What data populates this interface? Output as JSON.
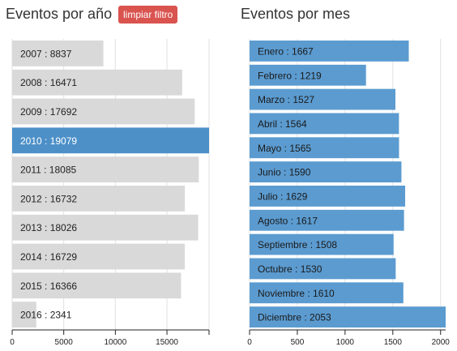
{
  "year_panel": {
    "title": "Eventos por año",
    "reset_label": "limpiar filtro"
  },
  "month_panel": {
    "title": "Eventos por mes"
  },
  "chart_data": [
    {
      "type": "bar",
      "orientation": "horizontal",
      "title": "Eventos por año",
      "categories": [
        "2007",
        "2008",
        "2009",
        "2010",
        "2011",
        "2012",
        "2013",
        "2014",
        "2015",
        "2016"
      ],
      "values": [
        8837,
        16471,
        17692,
        19079,
        18085,
        16732,
        18026,
        16729,
        16366,
        2341
      ],
      "row_labels": [
        "2007 : 8837",
        "2008 : 16471",
        "2009 : 17692",
        "2010 : 19079",
        "2011 : 18085",
        "2012 : 16732",
        "2013 : 18026",
        "2014 : 16729",
        "2015 : 16366",
        "2016 : 2341"
      ],
      "selected": "2010",
      "xlim": [
        0,
        19079
      ],
      "xticks": [
        0,
        5000,
        10000,
        15000
      ],
      "xtick_labels": [
        "0",
        "5000",
        "10000",
        "15000"
      ],
      "grid": true,
      "colors": {
        "default": "#d9d9d9",
        "selected": "#4d90c8",
        "grid": "#e0e0e0"
      }
    },
    {
      "type": "bar",
      "orientation": "horizontal",
      "title": "Eventos por mes",
      "categories": [
        "Enero",
        "Febrero",
        "Marzo",
        "Abril",
        "Mayo",
        "Junio",
        "Julio",
        "Agosto",
        "Septiembre",
        "Octubre",
        "Noviembre",
        "Diciembre"
      ],
      "values": [
        1667,
        1219,
        1527,
        1564,
        1565,
        1590,
        1629,
        1617,
        1508,
        1530,
        1610,
        2053
      ],
      "row_labels": [
        "Enero : 1667",
        "Febrero : 1219",
        "Marzo : 1527",
        "Abril : 1564",
        "Mayo : 1565",
        "Junio : 1590",
        "Julio : 1629",
        "Agosto : 1617",
        "Septiembre : 1508",
        "Octubre : 1530",
        "Noviembre : 1610",
        "Diciembre : 2053"
      ],
      "xlim": [
        0,
        2053
      ],
      "xticks": [
        0,
        500,
        1000,
        1500,
        2000
      ],
      "xtick_labels": [
        "0",
        "500",
        "1000",
        "1500",
        "2000"
      ],
      "grid": true,
      "colors": {
        "default": "#5b9bd0",
        "grid": "#e0e0e0"
      }
    }
  ]
}
